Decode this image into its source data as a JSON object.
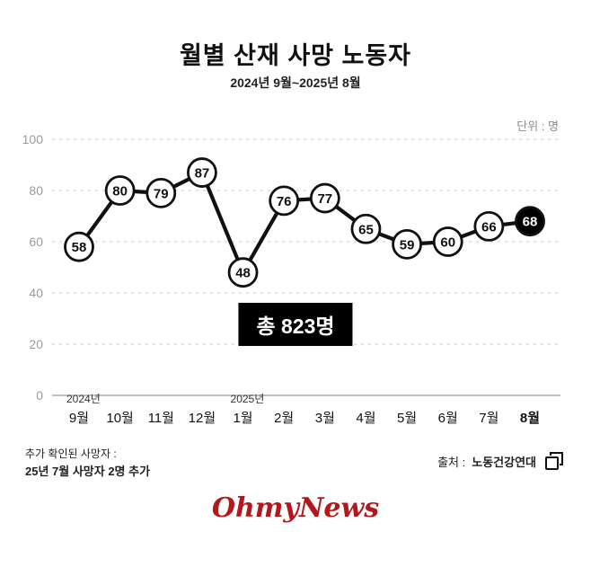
{
  "header": {
    "title": "월별 산재 사망 노동자",
    "subtitle": "2024년 9월~2025년 8월",
    "unit_label": "단위 : 명"
  },
  "chart_data": {
    "type": "line",
    "categories": [
      "9월",
      "10월",
      "11월",
      "12월",
      "1월",
      "2월",
      "3월",
      "4월",
      "5월",
      "6월",
      "7월",
      "8월"
    ],
    "year_markers": [
      {
        "index": 0,
        "label": "2024년"
      },
      {
        "index": 4,
        "label": "2025년"
      }
    ],
    "values": [
      58,
      80,
      79,
      87,
      48,
      76,
      77,
      65,
      59,
      60,
      66,
      68
    ],
    "highlight_last": true,
    "title": "월별 산재 사망 노동자",
    "xlabel": "",
    "ylabel": "",
    "unit": "명",
    "ylim": [
      0,
      100
    ],
    "yticks": [
      0,
      20,
      40,
      60,
      80,
      100
    ],
    "grid": "dashed-horizontal",
    "legend": "none",
    "annotation": "총 823명"
  },
  "footnote": {
    "line1": "추가 확인된 사망자 :",
    "line2": "25년 7월 사망자 2명 추가"
  },
  "source": {
    "prefix": "출처 : ",
    "name": "노동건강연대"
  },
  "logo": {
    "text": "OhmyNews"
  },
  "colors": {
    "line": "#111111",
    "point_fill": "#ffffff",
    "highlight_fill": "#000000",
    "highlight_text": "#ffffff",
    "grid": "#c9c9c9",
    "axis": "#9b9b9b",
    "tick_text": "#9b9b9b",
    "annotation_bg": "#000000",
    "annotation_text": "#ffffff",
    "logo_red": "#b2171b"
  }
}
